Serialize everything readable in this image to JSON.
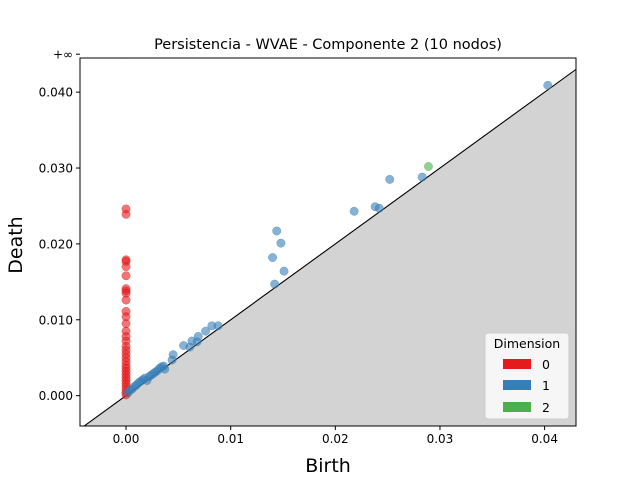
{
  "chart_data": {
    "type": "scatter",
    "title": "Persistencia - WVAE - Componente 2 (10 nodos)",
    "xlabel": "Birth",
    "ylabel": "Death",
    "xlim": [
      -0.0044,
      0.043
    ],
    "ylim": [
      -0.004,
      0.0445
    ],
    "xticks": [
      0.0,
      0.01,
      0.02,
      0.03,
      0.04
    ],
    "xtick_labels": [
      "0.00",
      "0.01",
      "0.02",
      "0.03",
      "0.04"
    ],
    "yticks": [
      0.0,
      0.01,
      0.02,
      0.03,
      0.04
    ],
    "ytick_labels": [
      "0.000",
      "0.010",
      "0.020",
      "0.030",
      "0.040"
    ],
    "infinity_label": "+∞",
    "infinity_value": 0.045,
    "diagonal": true,
    "grid": false,
    "legend": {
      "title": "Dimension",
      "placement": "lower-right",
      "entries": [
        {
          "label": "0",
          "color": "#e41a1c"
        },
        {
          "label": "1",
          "color": "#377eb8"
        },
        {
          "label": "2",
          "color": "#4daf4a"
        }
      ]
    },
    "series": [
      {
        "name": "0",
        "color": "#e41a1c",
        "points": [
          [
            0.0,
            0.045
          ],
          [
            0.0,
            0.0246
          ],
          [
            0.0,
            0.0239
          ],
          [
            0.0,
            0.0179
          ],
          [
            0.0,
            0.0177
          ],
          [
            0.0,
            0.017
          ],
          [
            0.0,
            0.0158
          ],
          [
            0.0,
            0.0141
          ],
          [
            0.0,
            0.0138
          ],
          [
            0.0,
            0.0135
          ],
          [
            0.0,
            0.0126
          ],
          [
            0.0,
            0.0111
          ],
          [
            0.0,
            0.0104
          ],
          [
            0.0,
            0.0095
          ],
          [
            0.0,
            0.0085
          ],
          [
            0.0,
            0.0078
          ],
          [
            0.0,
            0.0072
          ],
          [
            0.0,
            0.0065
          ],
          [
            0.0,
            0.006
          ],
          [
            0.0,
            0.0055
          ],
          [
            0.0,
            0.005
          ],
          [
            0.0,
            0.0045
          ],
          [
            0.0,
            0.004
          ],
          [
            0.0,
            0.0036
          ],
          [
            0.0,
            0.0032
          ],
          [
            0.0,
            0.0028
          ],
          [
            0.0,
            0.0024
          ],
          [
            0.0,
            0.002
          ],
          [
            0.0,
            0.0016
          ],
          [
            0.0,
            0.0012
          ],
          [
            0.0,
            0.0008
          ],
          [
            0.0,
            0.0004
          ],
          [
            0.0,
            0.0001
          ]
        ]
      },
      {
        "name": "1",
        "color": "#377eb8",
        "points": [
          [
            0.0002,
            0.0004
          ],
          [
            0.0004,
            0.0007
          ],
          [
            0.0006,
            0.0009
          ],
          [
            0.0008,
            0.0012
          ],
          [
            0.001,
            0.0014
          ],
          [
            0.0012,
            0.0017
          ],
          [
            0.0014,
            0.0019
          ],
          [
            0.0016,
            0.0021
          ],
          [
            0.0018,
            0.0023
          ],
          [
            0.002,
            0.002
          ],
          [
            0.0022,
            0.0025
          ],
          [
            0.0024,
            0.0027
          ],
          [
            0.0026,
            0.0029
          ],
          [
            0.0028,
            0.0031
          ],
          [
            0.003,
            0.0033
          ],
          [
            0.0032,
            0.0036
          ],
          [
            0.0034,
            0.0038
          ],
          [
            0.0036,
            0.0039
          ],
          [
            0.0037,
            0.0035
          ],
          [
            0.0044,
            0.0047
          ],
          [
            0.0045,
            0.0054
          ],
          [
            0.0055,
            0.0066
          ],
          [
            0.0061,
            0.0064
          ],
          [
            0.0063,
            0.0072
          ],
          [
            0.0068,
            0.0071
          ],
          [
            0.0069,
            0.0078
          ],
          [
            0.0076,
            0.0085
          ],
          [
            0.0082,
            0.0092
          ],
          [
            0.0088,
            0.0092
          ],
          [
            0.014,
            0.0182
          ],
          [
            0.0142,
            0.0147
          ],
          [
            0.0144,
            0.0217
          ],
          [
            0.0148,
            0.0201
          ],
          [
            0.0151,
            0.0164
          ],
          [
            0.0218,
            0.0243
          ],
          [
            0.0238,
            0.0249
          ],
          [
            0.0242,
            0.0247
          ],
          [
            0.0252,
            0.0285
          ],
          [
            0.0283,
            0.0288
          ],
          [
            0.0403,
            0.0409
          ]
        ]
      },
      {
        "name": "2",
        "color": "#4daf4a",
        "points": [
          [
            0.0289,
            0.0302
          ]
        ]
      }
    ]
  }
}
